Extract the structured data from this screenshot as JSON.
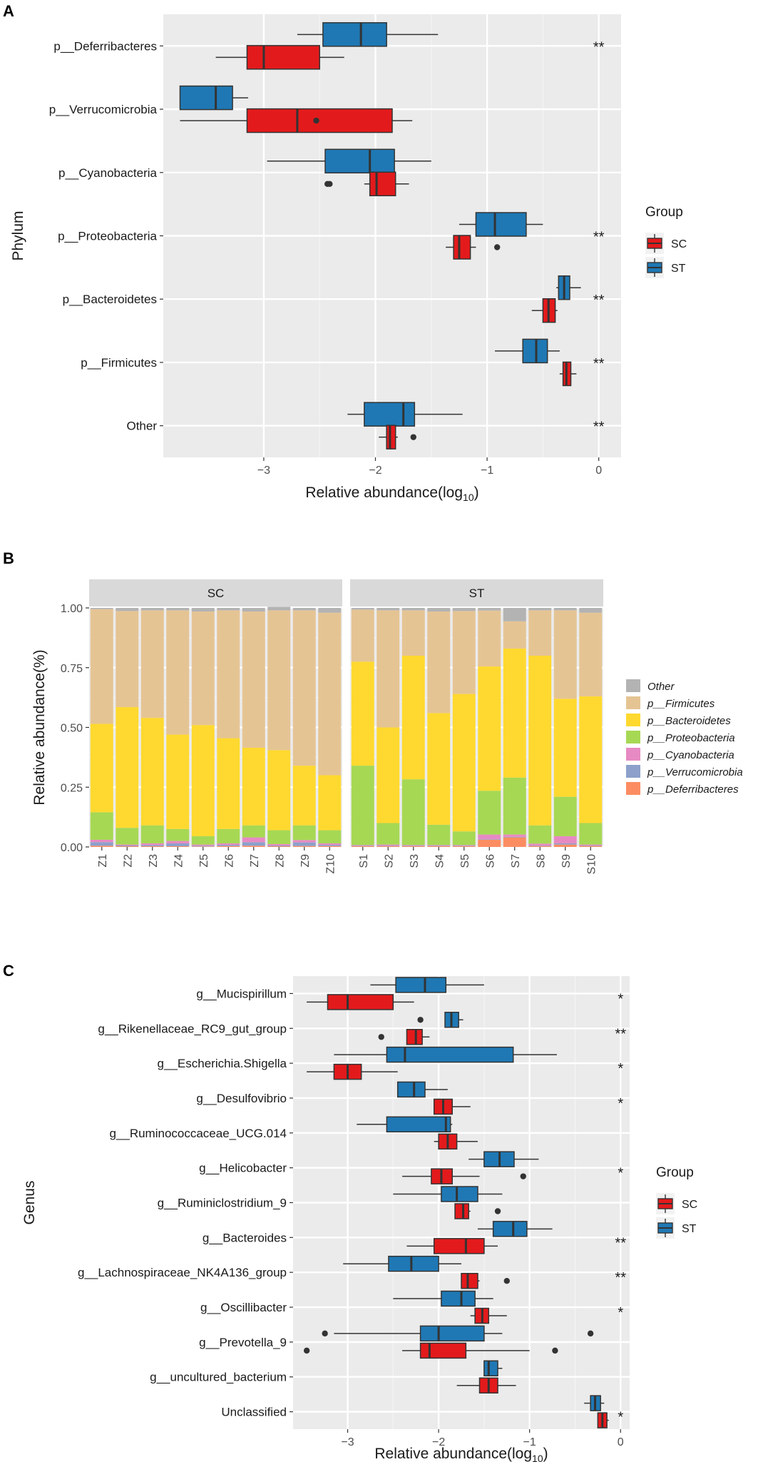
{
  "chart_data": [
    {
      "id": "A",
      "type": "box",
      "panel_label": "A",
      "xlabel": "Relative abundance(log",
      "xlabel_sub": "10",
      "xlabel_end": ")",
      "ylabel": "Phylum",
      "xlim": [
        -3.9,
        0.2
      ],
      "xticks": [
        -3,
        -2,
        -1,
        0
      ],
      "xtick_labels": [
        "−3",
        "−2",
        "−1",
        "0"
      ],
      "legend": {
        "title": "Group",
        "items": [
          {
            "name": "SC",
            "color": "#E31A1C"
          },
          {
            "name": "ST",
            "color": "#1F78B4"
          }
        ]
      },
      "categories": [
        {
          "name": "p__Deferribacteres",
          "sig": "**",
          "ST": {
            "wlo": -2.7,
            "q1": -2.47,
            "med": -2.13,
            "q3": -1.9,
            "whi": -1.44,
            "out": []
          },
          "SC": {
            "wlo": -3.43,
            "q1": -3.15,
            "med": -3.0,
            "q3": -2.5,
            "whi": -2.28,
            "out": []
          }
        },
        {
          "name": "p__Verrucomicrobia",
          "sig": "",
          "ST": {
            "wlo": -3.75,
            "q1": -3.75,
            "med": -3.43,
            "q3": -3.28,
            "whi": -3.14,
            "out": []
          },
          "SC": {
            "wlo": -3.75,
            "q1": -3.15,
            "med": -2.7,
            "q3": -1.85,
            "whi": -1.67,
            "out": [
              -2.53
            ]
          }
        },
        {
          "name": "p__Cyanobacteria",
          "sig": "",
          "ST": {
            "wlo": -2.97,
            "q1": -2.45,
            "med": -2.05,
            "q3": -1.83,
            "whi": -1.5,
            "out": []
          },
          "SC": {
            "wlo": -2.1,
            "q1": -2.05,
            "med": -1.99,
            "q3": -1.82,
            "whi": -1.7,
            "out": [
              -2.43,
              -2.41
            ]
          }
        },
        {
          "name": "p__Proteobacteria",
          "sig": "**",
          "ST": {
            "wlo": -1.25,
            "q1": -1.1,
            "med": -0.93,
            "q3": -0.65,
            "whi": -0.5,
            "out": []
          },
          "SC": {
            "wlo": -1.37,
            "q1": -1.3,
            "med": -1.25,
            "q3": -1.15,
            "whi": -1.1,
            "out": [
              -0.91
            ]
          }
        },
        {
          "name": "p__Bacteroidetes",
          "sig": "**",
          "ST": {
            "wlo": -0.38,
            "q1": -0.36,
            "med": -0.31,
            "q3": -0.26,
            "whi": -0.16,
            "out": []
          },
          "SC": {
            "wlo": -0.6,
            "q1": -0.5,
            "med": -0.45,
            "q3": -0.39,
            "whi": -0.37,
            "out": []
          }
        },
        {
          "name": "p__Firmicutes",
          "sig": "**",
          "ST": {
            "wlo": -0.93,
            "q1": -0.68,
            "med": -0.56,
            "q3": -0.46,
            "whi": -0.35,
            "out": []
          },
          "SC": {
            "wlo": -0.35,
            "q1": -0.32,
            "med": -0.29,
            "q3": -0.25,
            "whi": -0.2,
            "out": []
          }
        },
        {
          "name": "Other",
          "sig": "**",
          "ST": {
            "wlo": -2.25,
            "q1": -2.1,
            "med": -1.75,
            "q3": -1.65,
            "whi": -1.22,
            "out": []
          },
          "SC": {
            "wlo": -1.97,
            "q1": -1.9,
            "med": -1.87,
            "q3": -1.82,
            "whi": -1.8,
            "out": [
              -1.66
            ]
          }
        }
      ]
    },
    {
      "id": "B",
      "type": "stacked-bar",
      "panel_label": "B",
      "ylabel": "Relative abundance(%)",
      "ylim": [
        0,
        1
      ],
      "yticks": [
        0,
        0.25,
        0.5,
        0.75,
        1
      ],
      "ytick_labels": [
        "0.00",
        "0.25",
        "0.50",
        "0.75",
        "1.00"
      ],
      "facets": [
        {
          "name": "SC",
          "samples": [
            "Z1",
            "Z2",
            "Z3",
            "Z4",
            "Z5",
            "Z6",
            "Z7",
            "Z8",
            "Z9",
            "Z10"
          ]
        },
        {
          "name": "ST",
          "samples": [
            "S1",
            "S2",
            "S3",
            "S4",
            "S5",
            "S6",
            "S7",
            "S8",
            "S9",
            "S10"
          ]
        }
      ],
      "stack_order": [
        "p__Deferribacteres",
        "p__Verrucomicrobia",
        "p__Cyanobacteria",
        "p__Proteobacteria",
        "p__Bacteroidetes",
        "p__Firmicutes",
        "Other"
      ],
      "legend": [
        {
          "name": "Other",
          "color": "#B3B3B3"
        },
        {
          "name": "p__Firmicutes",
          "color": "#E5C494"
        },
        {
          "name": "p__Bacteroidetes",
          "color": "#FFD92F"
        },
        {
          "name": "p__Proteobacteria",
          "color": "#A6D854"
        },
        {
          "name": "p__Cyanobacteria",
          "color": "#E78AC3"
        },
        {
          "name": "p__Verrucomicrobia",
          "color": "#8DA0CB"
        },
        {
          "name": "p__Deferribacteres",
          "color": "#FC8D62"
        }
      ],
      "series": [
        {
          "name": "p__Deferribacteres",
          "values": [
            0.005,
            0.003,
            0.003,
            0.003,
            0.002,
            0.004,
            0.005,
            0.003,
            0.004,
            0.004,
            0.003,
            0.003,
            0.003,
            0.003,
            0.003,
            0.03,
            0.04,
            0.004,
            0.01,
            0.004
          ]
        },
        {
          "name": "p__Verrucomicrobia",
          "values": [
            0.015,
            0.003,
            0.005,
            0.012,
            0.003,
            0.005,
            0.015,
            0.003,
            0.015,
            0.005,
            0.002,
            0.002,
            0.002,
            0.002,
            0.002,
            0.002,
            0.002,
            0.002,
            0.005,
            0.002
          ]
        },
        {
          "name": "p__Cyanobacteria",
          "values": [
            0.01,
            0.004,
            0.007,
            0.01,
            0.005,
            0.006,
            0.02,
            0.006,
            0.01,
            0.006,
            0.003,
            0.005,
            0.003,
            0.003,
            0.003,
            0.02,
            0.01,
            0.008,
            0.03,
            0.004
          ]
        },
        {
          "name": "p__Proteobacteria",
          "values": [
            0.115,
            0.07,
            0.075,
            0.05,
            0.035,
            0.06,
            0.05,
            0.058,
            0.061,
            0.055,
            0.332,
            0.09,
            0.275,
            0.085,
            0.057,
            0.183,
            0.238,
            0.076,
            0.165,
            0.09
          ]
        },
        {
          "name": "p__Bacteroidetes",
          "values": [
            0.37,
            0.505,
            0.45,
            0.395,
            0.465,
            0.38,
            0.325,
            0.335,
            0.25,
            0.23,
            0.435,
            0.4,
            0.517,
            0.467,
            0.575,
            0.52,
            0.54,
            0.71,
            0.41,
            0.53
          ]
        },
        {
          "name": "p__Firmicutes",
          "values": [
            0.48,
            0.402,
            0.45,
            0.52,
            0.475,
            0.535,
            0.57,
            0.585,
            0.65,
            0.68,
            0.218,
            0.49,
            0.19,
            0.425,
            0.347,
            0.234,
            0.114,
            0.19,
            0.37,
            0.35
          ]
        },
        {
          "name": "Other",
          "values": [
            0.005,
            0.013,
            0.01,
            0.01,
            0.015,
            0.01,
            0.015,
            0.015,
            0.01,
            0.02,
            0.007,
            0.01,
            0.01,
            0.015,
            0.013,
            0.011,
            0.056,
            0.01,
            0.01,
            0.02
          ]
        }
      ]
    },
    {
      "id": "C",
      "type": "box",
      "panel_label": "C",
      "xlabel": "Relative abundance(log",
      "xlabel_sub": "10",
      "xlabel_end": ")",
      "ylabel": "Genus",
      "xlim": [
        -3.6,
        0.1
      ],
      "xticks": [
        -3,
        -2,
        -1,
        0
      ],
      "xtick_labels": [
        "−3",
        "−2",
        "−1",
        "0"
      ],
      "legend": {
        "title": "Group",
        "items": [
          {
            "name": "SC",
            "color": "#E31A1C"
          },
          {
            "name": "ST",
            "color": "#1F78B4"
          }
        ]
      },
      "categories": [
        {
          "name": "g__Mucispirillum",
          "sig": "*",
          "ST": {
            "wlo": -2.75,
            "q1": -2.47,
            "med": -2.15,
            "q3": -1.92,
            "whi": -1.5,
            "out": []
          },
          "SC": {
            "wlo": -3.45,
            "q1": -3.22,
            "med": -3.0,
            "q3": -2.5,
            "whi": -2.27,
            "out": []
          }
        },
        {
          "name": "g__Rikenellaceae_RC9_gut_group",
          "sig": "**",
          "ST": {
            "wlo": -1.93,
            "q1": -1.93,
            "med": -1.86,
            "q3": -1.78,
            "whi": -1.73,
            "out": [
              -2.2
            ]
          },
          "SC": {
            "wlo": -2.35,
            "q1": -2.35,
            "med": -2.25,
            "q3": -2.18,
            "whi": -2.1,
            "out": [
              -2.63
            ]
          }
        },
        {
          "name": "g__Escherichia.Shigella",
          "sig": "*",
          "ST": {
            "wlo": -3.15,
            "q1": -2.57,
            "med": -2.37,
            "q3": -1.18,
            "whi": -0.7,
            "out": []
          },
          "SC": {
            "wlo": -3.45,
            "q1": -3.15,
            "med": -3.0,
            "q3": -2.85,
            "whi": -2.45,
            "out": []
          }
        },
        {
          "name": "g__Desulfovibrio",
          "sig": "*",
          "ST": {
            "wlo": -2.45,
            "q1": -2.45,
            "med": -2.27,
            "q3": -2.15,
            "whi": -1.9,
            "out": []
          },
          "SC": {
            "wlo": -2.05,
            "q1": -2.05,
            "med": -1.95,
            "q3": -1.85,
            "whi": -1.65,
            "out": []
          }
        },
        {
          "name": "g__Ruminococcaceae_UCG.014",
          "sig": "",
          "ST": {
            "wlo": -2.9,
            "q1": -2.57,
            "med": -1.92,
            "q3": -1.87,
            "whi": -1.85,
            "out": []
          },
          "SC": {
            "wlo": -2.05,
            "q1": -2.0,
            "med": -1.9,
            "q3": -1.8,
            "whi": -1.57,
            "out": []
          }
        },
        {
          "name": "g__Helicobacter",
          "sig": "*",
          "ST": {
            "wlo": -1.67,
            "q1": -1.5,
            "med": -1.33,
            "q3": -1.17,
            "whi": -0.9,
            "out": []
          },
          "SC": {
            "wlo": -2.4,
            "q1": -2.08,
            "med": -1.97,
            "q3": -1.85,
            "whi": -1.55,
            "out": [
              -1.07
            ]
          }
        },
        {
          "name": "g__Ruminiclostridium_9",
          "sig": "",
          "ST": {
            "wlo": -2.5,
            "q1": -1.97,
            "med": -1.8,
            "q3": -1.57,
            "whi": -1.3,
            "out": []
          },
          "SC": {
            "wlo": -1.82,
            "q1": -1.82,
            "med": -1.73,
            "q3": -1.67,
            "whi": -1.65,
            "out": [
              -1.35
            ]
          }
        },
        {
          "name": "g__Bacteroides",
          "sig": "**",
          "ST": {
            "wlo": -1.57,
            "q1": -1.4,
            "med": -1.18,
            "q3": -1.03,
            "whi": -0.75,
            "out": []
          },
          "SC": {
            "wlo": -2.35,
            "q1": -2.05,
            "med": -1.7,
            "q3": -1.5,
            "whi": -1.35,
            "out": []
          }
        },
        {
          "name": "g__Lachnospiraceae_NK4A136_group",
          "sig": "**",
          "ST": {
            "wlo": -3.05,
            "q1": -2.55,
            "med": -2.3,
            "q3": -2.0,
            "whi": -1.75,
            "out": []
          },
          "SC": {
            "wlo": -1.75,
            "q1": -1.75,
            "med": -1.68,
            "q3": -1.57,
            "whi": -1.55,
            "out": [
              -1.25
            ]
          }
        },
        {
          "name": "g__Oscillibacter",
          "sig": "*",
          "ST": {
            "wlo": -2.5,
            "q1": -1.97,
            "med": -1.75,
            "q3": -1.6,
            "whi": -1.4,
            "out": []
          },
          "SC": {
            "wlo": -1.65,
            "q1": -1.6,
            "med": -1.52,
            "q3": -1.45,
            "whi": -1.25,
            "out": []
          }
        },
        {
          "name": "g__Prevotella_9",
          "sig": "",
          "ST": {
            "wlo": -3.15,
            "q1": -2.2,
            "med": -2.0,
            "q3": -1.5,
            "whi": -1.3,
            "out": [
              -3.25,
              -0.33
            ]
          },
          "SC": {
            "wlo": -2.4,
            "q1": -2.2,
            "med": -2.1,
            "q3": -1.7,
            "whi": -1.0,
            "out": [
              -3.45,
              -0.72
            ]
          }
        },
        {
          "name": "g__uncultured_bacterium",
          "sig": "",
          "ST": {
            "wlo": -1.5,
            "q1": -1.5,
            "med": -1.45,
            "q3": -1.35,
            "whi": -1.3,
            "out": []
          },
          "SC": {
            "wlo": -1.8,
            "q1": -1.55,
            "med": -1.45,
            "q3": -1.35,
            "whi": -1.15,
            "out": []
          }
        },
        {
          "name": "Unclassified",
          "sig": "*",
          "ST": {
            "wlo": -0.4,
            "q1": -0.33,
            "med": -0.28,
            "q3": -0.22,
            "whi": -0.18,
            "out": []
          },
          "SC": {
            "wlo": -0.25,
            "q1": -0.25,
            "med": -0.2,
            "q3": -0.15,
            "whi": -0.13,
            "out": []
          }
        }
      ]
    }
  ]
}
